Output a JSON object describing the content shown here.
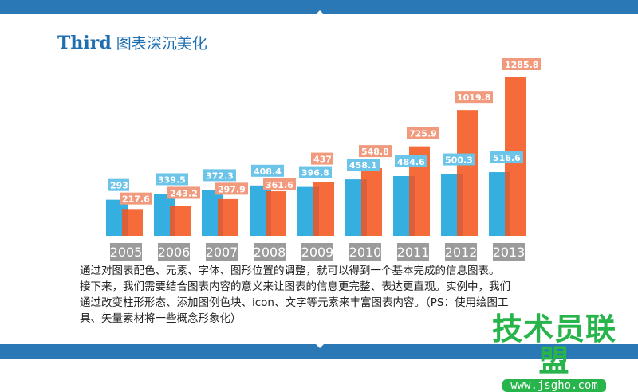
{
  "header": {
    "title_en": "Third",
    "title_cn": "图表深沉美化"
  },
  "chart_data": {
    "type": "bar",
    "categories": [
      "2005",
      "2006",
      "2007",
      "2008",
      "2009",
      "2010",
      "2011",
      "2012",
      "2013"
    ],
    "series": [
      {
        "values": [
          293,
          339.5,
          372.3,
          408.4,
          396.8,
          458.1,
          484.6,
          500.3,
          516.6
        ],
        "color": "#35aee0",
        "label_color": "#6cc4e8"
      },
      {
        "values": [
          217.6,
          243.2,
          297.9,
          361.6,
          437,
          548.8,
          725.9,
          1019.8,
          1285.8
        ],
        "color": "#f56b3a",
        "label_color": "#f29a7d"
      }
    ],
    "ylim": [
      0,
      1285.8
    ],
    "grid": false,
    "category_label_bg": "#9b9b9b"
  },
  "description": {
    "lines": [
      "通过对图表配色、元素、字体、图形位置的调整，就可以得到一个基本完成的信息图表。",
      "接下来，我们需要结合图表内容的意义来让图表的信息更完整、表达更直观。实例中，我们",
      "通过改变柱形形态、添加图例色块、icon、文字等元素来丰富图表内容。（PS：使用绘图工",
      "具、矢量素材将一些概念形象化）"
    ]
  },
  "watermark": {
    "text": "技术员联盟",
    "url": "www.jsgho.com"
  }
}
